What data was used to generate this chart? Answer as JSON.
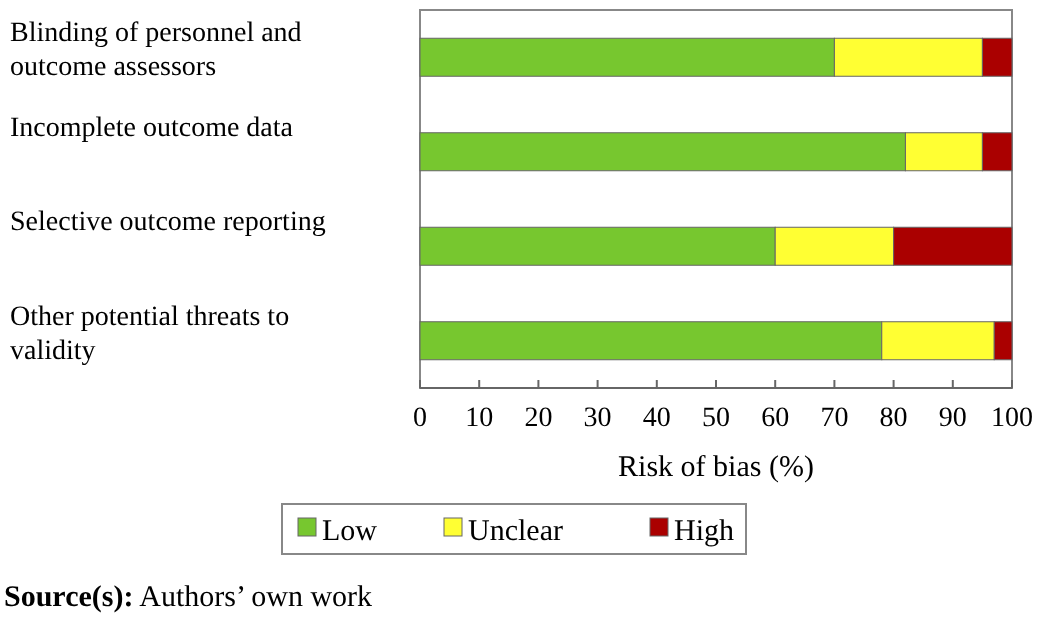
{
  "chart_data": {
    "type": "bar",
    "orientation": "horizontal",
    "stacked": true,
    "categories": [
      "Blinding of personnel and outcome assessors",
      "Incomplete outcome data",
      "Selective outcome reporting",
      "Other potential threats to validity"
    ],
    "series": [
      {
        "name": "Low",
        "color": "#77c72f",
        "values": [
          70,
          82,
          60,
          78
        ]
      },
      {
        "name": "Unclear",
        "color": "#ffff33",
        "values": [
          25,
          13,
          20,
          19
        ]
      },
      {
        "name": "High",
        "color": "#aa0000",
        "values": [
          5,
          5,
          20,
          3
        ]
      }
    ],
    "xlim": [
      0,
      100
    ],
    "xticks": [
      0,
      10,
      20,
      30,
      40,
      50,
      60,
      70,
      80,
      90,
      100
    ],
    "xlabel": "Risk of bias (%)",
    "legend": "bottom",
    "grid": false,
    "annotations": [
      "Source(s): Authors’ own work"
    ]
  }
}
